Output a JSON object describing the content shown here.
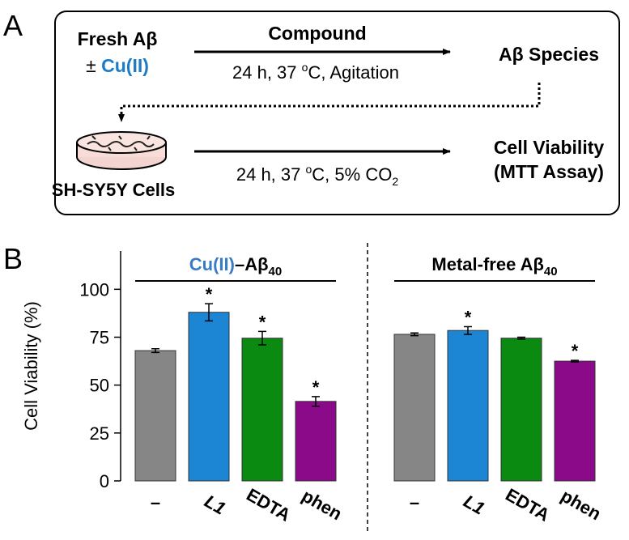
{
  "scheme": {
    "panel_label": "A",
    "start": {
      "line1_parts": [
        "Fresh Aβ"
      ],
      "line2_parts": [
        "± ",
        "Cu(II)"
      ]
    },
    "step1": {
      "label": "Compound",
      "condition_parts": [
        "24 h, 37 ",
        "o",
        "C, Agitation"
      ]
    },
    "product": "Aβ Species",
    "cells": "SH-SY5Y Cells",
    "step2": {
      "condition_parts": [
        "24 h, 37 ",
        "o",
        "C, 5% CO",
        "2"
      ]
    },
    "result": {
      "line1": "Cell Viability",
      "line2": "(MTT Assay)"
    }
  },
  "chart_data": {
    "type": "bar",
    "panel_label": "B",
    "ylabel": "Cell Viability (%)",
    "ylim": [
      0,
      120
    ],
    "yticks": [
      0,
      25,
      50,
      75,
      100
    ],
    "categories": [
      "–",
      "L1",
      "EDTA",
      "phen"
    ],
    "colors": [
      "#868686",
      "#1c86d4",
      "#0b8a12",
      "#8a0a8a"
    ],
    "groups": [
      {
        "title_parts": [
          "Cu(II)",
          "–Aβ",
          "40"
        ],
        "values": [
          68,
          88,
          74.5,
          41.5
        ],
        "errors": [
          1,
          4.5,
          3.5,
          2.5
        ],
        "significance": [
          null,
          "*",
          "*",
          "*"
        ]
      },
      {
        "title_parts": [
          "Metal-free Aβ",
          "40"
        ],
        "values": [
          76.5,
          78.5,
          74.5,
          62.5
        ],
        "errors": [
          0.7,
          2,
          0.5,
          0.4
        ],
        "significance": [
          null,
          "*",
          null,
          "*"
        ]
      }
    ]
  }
}
